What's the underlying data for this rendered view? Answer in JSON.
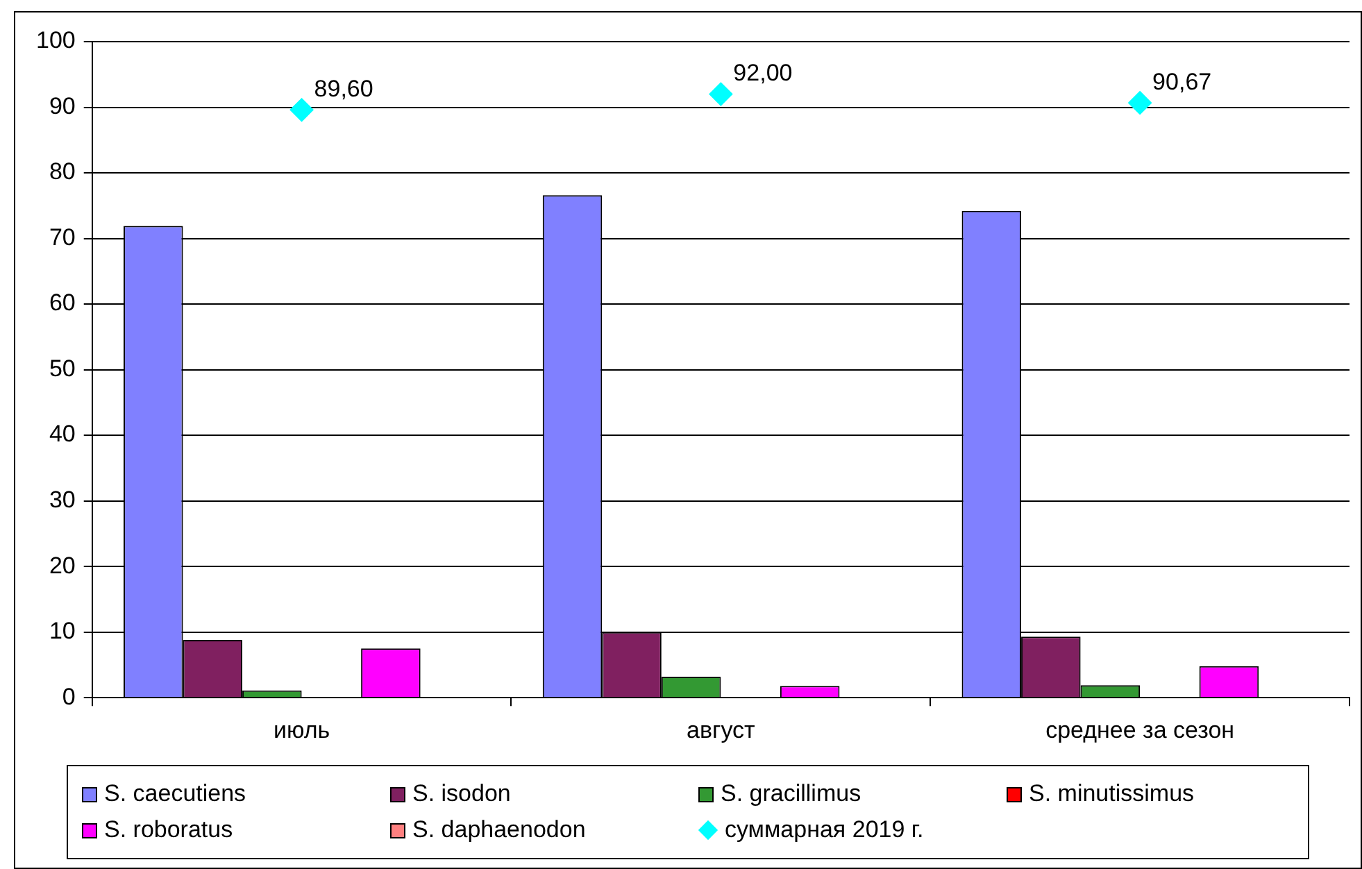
{
  "chart_data": {
    "type": "bar",
    "categories": [
      "июль",
      "август",
      "среднее за сезон"
    ],
    "series": [
      {
        "name": "S. caecutiens",
        "color": "#8080ff",
        "values": [
          71.9,
          76.6,
          74.2
        ]
      },
      {
        "name": "S. isodon",
        "color": "#802060",
        "values": [
          8.8,
          10.0,
          9.3
        ]
      },
      {
        "name": "S. gracillimus",
        "color": "#339933",
        "values": [
          1.1,
          3.2,
          1.9
        ]
      },
      {
        "name": "S. minutissimus",
        "color": "#ff0000",
        "values": [
          null,
          0.0,
          null
        ]
      },
      {
        "name": "S. roboratus",
        "color": "#ff00ff",
        "values": [
          7.5,
          1.8,
          4.8
        ]
      },
      {
        "name": "S. daphaenodon",
        "color": "#ff8080",
        "values": [
          null,
          null,
          null
        ]
      },
      {
        "name": "суммарная 2019 г.",
        "type": "scatter",
        "color": "#00ffff",
        "x": [
          "июль",
          "август",
          "среднее за сезон"
        ],
        "values": [
          89.6,
          92.0,
          90.67
        ],
        "value_labels": [
          "89,60",
          "92,00",
          "90,67"
        ]
      }
    ],
    "ylim": [
      0,
      100
    ],
    "yticks": [
      0,
      10,
      20,
      30,
      40,
      50,
      60,
      70,
      80,
      90,
      100
    ],
    "grid": "y",
    "legend": "bottom",
    "marker": "diamond"
  }
}
